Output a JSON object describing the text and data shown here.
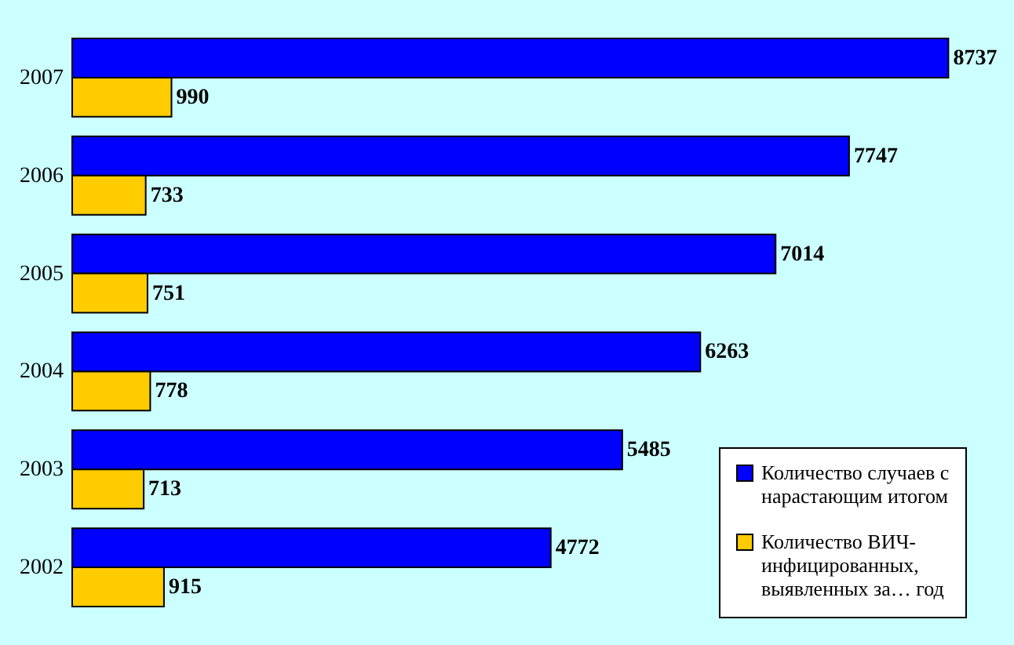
{
  "chart_data": {
    "type": "bar",
    "orientation": "horizontal",
    "categories": [
      "2007",
      "2006",
      "2005",
      "2004",
      "2003",
      "2002"
    ],
    "series": [
      {
        "name": "Количество случаев с нарастающим итогом",
        "color": "#0000ff",
        "values": [
          8737,
          7747,
          7014,
          6263,
          5485,
          4772
        ]
      },
      {
        "name": "Количество ВИЧ-инфицированных, выявленных за… год",
        "color": "#ffcc00",
        "values": [
          990,
          733,
          751,
          778,
          713,
          915
        ]
      }
    ],
    "data_labels": true,
    "legend": "bottom right",
    "grid": false
  }
}
